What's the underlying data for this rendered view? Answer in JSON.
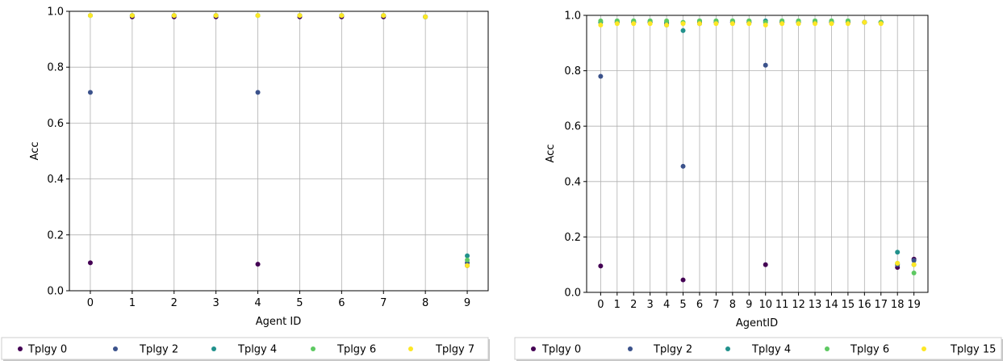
{
  "chart_data": [
    {
      "type": "scatter",
      "xlabel": "Agent ID",
      "ylabel": "Acc",
      "x": [
        0,
        1,
        2,
        3,
        4,
        5,
        6,
        7,
        8,
        9
      ],
      "xticks": [
        "0",
        "1",
        "2",
        "3",
        "4",
        "5",
        "6",
        "7",
        "8",
        "9"
      ],
      "yticks": [
        "0.0",
        "0.2",
        "0.4",
        "0.6",
        "0.8",
        "1.0"
      ],
      "ylim": [
        0,
        1.0
      ],
      "xlim": [
        -0.5,
        9.5
      ],
      "grid": true,
      "legend_placement": "bottom",
      "series": [
        {
          "name": "Tplgy 0",
          "color": "#440154",
          "values": [
            0.1,
            0.98,
            0.98,
            0.98,
            0.095,
            0.98,
            0.98,
            0.98,
            0.98,
            0.09
          ]
        },
        {
          "name": "Tplgy 2",
          "color": "#3b528b",
          "values": [
            0.71,
            0.985,
            0.985,
            0.985,
            0.71,
            0.985,
            0.985,
            0.985,
            0.98,
            0.1
          ]
        },
        {
          "name": "Tplgy 4",
          "color": "#21918c",
          "values": [
            0.985,
            0.985,
            0.985,
            0.985,
            0.985,
            0.985,
            0.985,
            0.985,
            0.98,
            0.125
          ]
        },
        {
          "name": "Tplgy 6",
          "color": "#5ec962",
          "values": [
            0.985,
            0.985,
            0.985,
            0.985,
            0.985,
            0.985,
            0.985,
            0.985,
            0.98,
            0.11
          ]
        },
        {
          "name": "Tplgy 7",
          "color": "#fde725",
          "values": [
            0.985,
            0.985,
            0.985,
            0.985,
            0.985,
            0.985,
            0.985,
            0.985,
            0.98,
            0.09
          ]
        }
      ]
    },
    {
      "type": "scatter",
      "xlabel": "AgentID",
      "ylabel": "Acc",
      "x": [
        0,
        1,
        2,
        3,
        4,
        5,
        6,
        7,
        8,
        9,
        10,
        11,
        12,
        13,
        14,
        15,
        16,
        17,
        18,
        19
      ],
      "xticks": [
        "0",
        "1",
        "2",
        "3",
        "4",
        "5",
        "6",
        "7",
        "8",
        "9",
        "10",
        "11",
        "12",
        "13",
        "14",
        "15",
        "16",
        "17",
        "18",
        "19"
      ],
      "yticks": [
        "0.0",
        "0.2",
        "0.4",
        "0.6",
        "0.8",
        "1.0"
      ],
      "ylim": [
        0,
        1.0
      ],
      "xlim": [
        -0.85,
        19.85
      ],
      "grid": true,
      "legend_placement": "bottom",
      "series": [
        {
          "name": "Tplgy 0",
          "color": "#440154",
          "values": [
            0.095,
            0.975,
            0.975,
            0.975,
            0.97,
            0.045,
            0.975,
            0.975,
            0.975,
            0.975,
            0.1,
            0.975,
            0.975,
            0.975,
            0.975,
            0.975,
            0.975,
            0.975,
            0.09,
            0.12
          ]
        },
        {
          "name": "Tplgy 2",
          "color": "#3b528b",
          "values": [
            0.78,
            0.975,
            0.975,
            0.975,
            0.965,
            0.455,
            0.97,
            0.975,
            0.975,
            0.975,
            0.82,
            0.975,
            0.975,
            0.975,
            0.975,
            0.975,
            0.975,
            0.975,
            0.1,
            0.115
          ]
        },
        {
          "name": "Tplgy 4",
          "color": "#21918c",
          "values": [
            0.975,
            0.98,
            0.98,
            0.98,
            0.975,
            0.945,
            0.98,
            0.98,
            0.98,
            0.98,
            0.98,
            0.98,
            0.98,
            0.98,
            0.98,
            0.98,
            0.975,
            0.975,
            0.145,
            0.1
          ]
        },
        {
          "name": "Tplgy 6",
          "color": "#5ec962",
          "values": [
            0.98,
            0.98,
            0.98,
            0.98,
            0.98,
            0.975,
            0.98,
            0.98,
            0.98,
            0.98,
            0.975,
            0.98,
            0.98,
            0.98,
            0.98,
            0.98,
            0.975,
            0.975,
            0.105,
            0.07
          ]
        },
        {
          "name": "Tplgy 15",
          "color": "#fde725",
          "values": [
            0.965,
            0.97,
            0.97,
            0.97,
            0.965,
            0.97,
            0.97,
            0.97,
            0.97,
            0.97,
            0.965,
            0.97,
            0.97,
            0.97,
            0.97,
            0.97,
            0.975,
            0.97,
            0.105,
            0.1
          ]
        }
      ]
    }
  ]
}
